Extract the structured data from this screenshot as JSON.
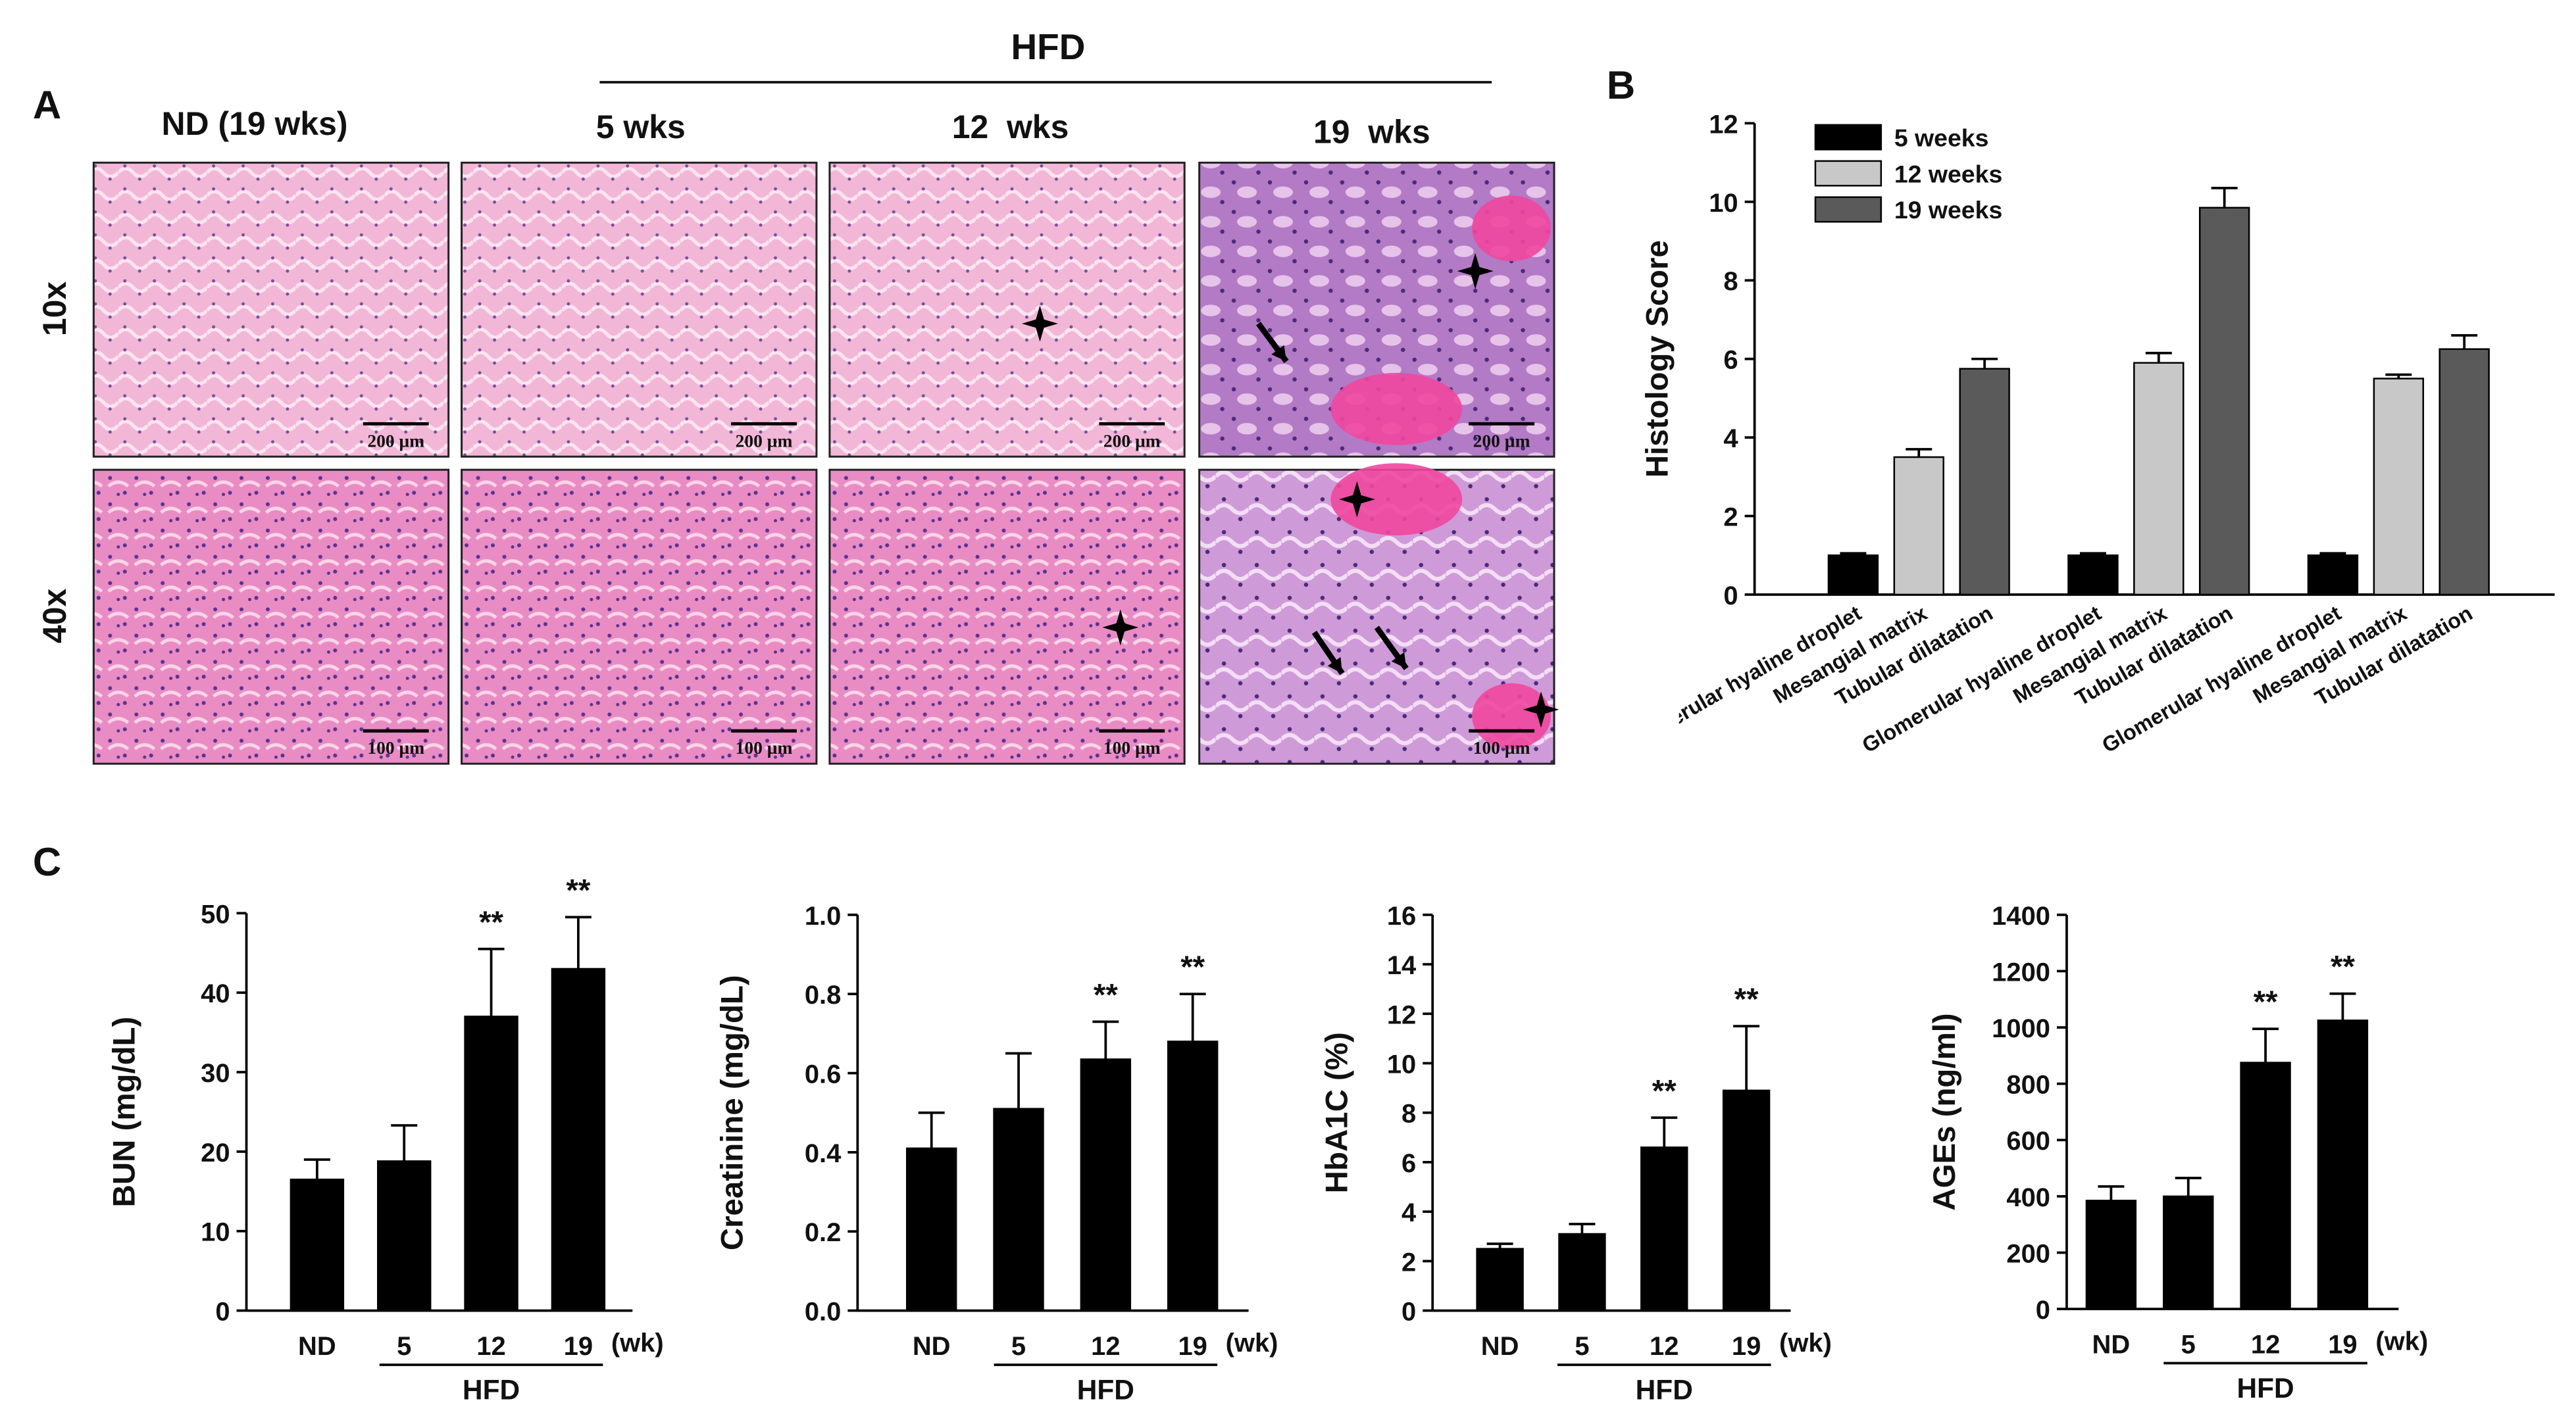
{
  "panel_labels": [
    "A",
    "B",
    "C"
  ],
  "histology": {
    "group_label": "HFD",
    "columns": [
      "ND (19 wks)",
      "5 wks",
      "12  wks",
      "19  wks"
    ],
    "rows": [
      "10x",
      "40x"
    ],
    "scale_bars": [
      "200 µm",
      "200 µm",
      "200 µm",
      "200 µm",
      "100 µm",
      "100 µm",
      "100 µm",
      "100 µm"
    ]
  },
  "chart_data": [
    {
      "type": "bar",
      "ylabel": "Histology Score",
      "categories": [
        "Glomerular hyaline droplet",
        "Mesangial matrix",
        "Tubular dilatation",
        "Glomerular hyaline droplet",
        "Mesangial matrix",
        "Tubular dilatation",
        "Glomerular hyaline droplet",
        "Mesangial matrix",
        "Tubular dilatation"
      ],
      "series": [
        {
          "name": "5 weeks",
          "color": "#000000",
          "values": [
            1.0,
            null,
            null,
            1.0,
            null,
            null,
            1.0,
            null,
            null
          ],
          "errors": [
            0.05,
            null,
            null,
            0.05,
            null,
            null,
            0.05,
            null,
            null
          ]
        },
        {
          "name": "12 weeks",
          "color": "#c8c8c8",
          "values": [
            null,
            3.5,
            null,
            null,
            5.9,
            null,
            null,
            5.5,
            null
          ],
          "errors": [
            null,
            0.2,
            null,
            null,
            0.25,
            null,
            null,
            0.1,
            null
          ]
        },
        {
          "name": "19 weeks",
          "color": "#5a5a5a",
          "values": [
            null,
            null,
            5.75,
            null,
            null,
            9.85,
            null,
            null,
            6.25
          ],
          "errors": [
            null,
            null,
            0.25,
            null,
            null,
            0.5,
            null,
            null,
            0.35
          ]
        }
      ],
      "ylim": [
        0,
        12
      ],
      "yticks": [
        0,
        2,
        4,
        6,
        8,
        10,
        12
      ],
      "legend": "upper left"
    },
    {
      "type": "bar",
      "ylabel": "BUN (mg/dL)",
      "categories": [
        "ND",
        "5",
        "12",
        "19"
      ],
      "x_unit": "(wk)",
      "group_label": "HFD",
      "series": [
        {
          "name": "BUN",
          "color": "#000000",
          "values": [
            16.5,
            18.8,
            37,
            43
          ],
          "errors": [
            2.5,
            4.5,
            8.5,
            6.5
          ]
        }
      ],
      "annotations": [
        null,
        null,
        "**",
        "**"
      ],
      "ylim": [
        0,
        50
      ],
      "yticks": [
        0,
        10,
        20,
        30,
        40,
        50
      ]
    },
    {
      "type": "bar",
      "ylabel": "Creatinine (mg/dL)",
      "categories": [
        "ND",
        "5",
        "12",
        "19"
      ],
      "x_unit": "(wk)",
      "group_label": "HFD",
      "series": [
        {
          "name": "Creatinine",
          "color": "#000000",
          "values": [
            0.41,
            0.51,
            0.635,
            0.68
          ],
          "errors": [
            0.09,
            0.14,
            0.095,
            0.12
          ]
        }
      ],
      "annotations": [
        null,
        null,
        "**",
        "**"
      ],
      "ylim": [
        0,
        1.0
      ],
      "yticks": [
        {
          "value": 0,
          "label": "0.0"
        },
        0.2,
        0.4,
        0.6,
        0.8,
        {
          "value": 1.0,
          "label": "1.0"
        }
      ]
    },
    {
      "type": "bar",
      "ylabel": "HbA1C (%)",
      "categories": [
        "ND",
        "5",
        "12",
        "19"
      ],
      "x_unit": "(wk)",
      "group_label": "HFD",
      "series": [
        {
          "name": "HbA1C",
          "color": "#000000",
          "values": [
            2.5,
            3.1,
            6.6,
            8.9
          ],
          "errors": [
            0.2,
            0.4,
            1.2,
            2.6
          ]
        }
      ],
      "annotations": [
        null,
        null,
        "**",
        "**"
      ],
      "ylim": [
        0,
        16
      ],
      "yticks": [
        0,
        2,
        4,
        6,
        8,
        10,
        12,
        14,
        16
      ]
    },
    {
      "type": "bar",
      "ylabel": "AGEs (ng/ml)",
      "categories": [
        "ND",
        "5",
        "12",
        "19"
      ],
      "x_unit": "(wk)",
      "group_label": "HFD",
      "series": [
        {
          "name": "AGEs",
          "color": "#000000",
          "values": [
            385,
            400,
            875,
            1025
          ],
          "errors": [
            50,
            65,
            120,
            95
          ]
        }
      ],
      "annotations": [
        null,
        null,
        "**",
        "**"
      ],
      "ylim": [
        0,
        1400
      ],
      "yticks": [
        0,
        200,
        400,
        600,
        800,
        1000,
        1200,
        1400
      ]
    }
  ]
}
